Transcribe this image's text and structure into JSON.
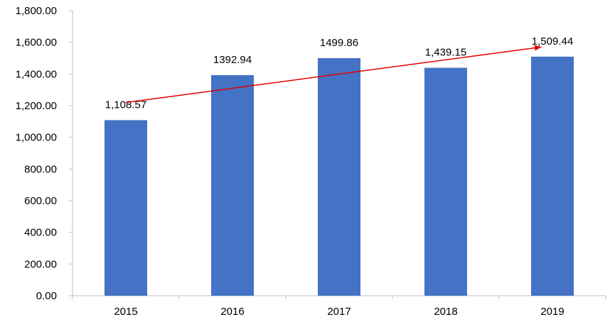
{
  "chart_data": {
    "type": "bar",
    "categories": [
      "2015",
      "2016",
      "2017",
      "2018",
      "2019"
    ],
    "values": [
      1108.57,
      1392.94,
      1499.86,
      1439.15,
      1509.44
    ],
    "data_labels": [
      "1,108.57",
      "1392.94",
      "1499.86",
      "1,439.15",
      "1,509.44"
    ],
    "title": "",
    "xlabel": "",
    "ylabel": "",
    "ylim": [
      0,
      1800
    ],
    "y_ticks": [
      0,
      200,
      400,
      600,
      800,
      1000,
      1200,
      1400,
      1600,
      1800
    ],
    "y_tick_labels": [
      "0.00",
      "200.00",
      "400.00",
      "600.00",
      "800.00",
      "1,000.00",
      "1,200.00",
      "1,400.00",
      "1,600.00",
      "1,800.00"
    ],
    "grid": false,
    "legend": "none",
    "bar_color": "#4472C4",
    "axis_color": "#BFBFBF",
    "trend_arrow": {
      "from": {
        "category": "2015",
        "value": 1220
      },
      "to": {
        "category": "2019",
        "value": 1570
      },
      "color": "#E50000"
    }
  }
}
